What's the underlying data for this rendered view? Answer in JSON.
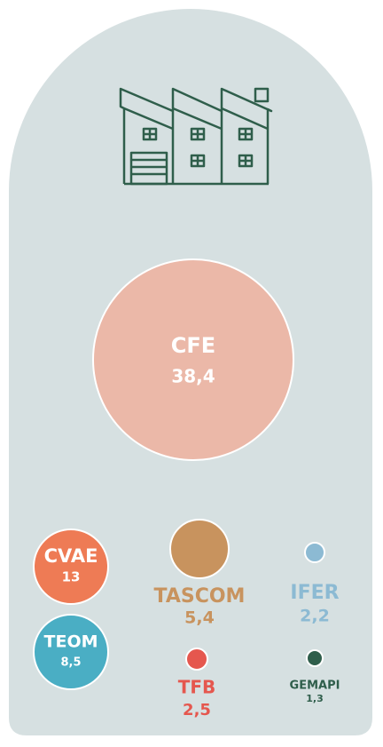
{
  "chart_data": {
    "type": "bubble",
    "categories": [
      "CFE",
      "CVAE",
      "TEOM",
      "TASCOM",
      "IFER",
      "TFB",
      "GEMAPI"
    ],
    "values": [
      38.4,
      13,
      8.5,
      5.4,
      2.2,
      2.5,
      1.3
    ],
    "value_labels": [
      "38,4",
      "13",
      "8,5",
      "5,4",
      "2,2",
      "2,5",
      "1,3"
    ],
    "colors": [
      "#ebb8a8",
      "#ee7b55",
      "#4aaec4",
      "#c8935e",
      "#8cbad3",
      "#e5574e",
      "#2f5e4b"
    ]
  }
}
